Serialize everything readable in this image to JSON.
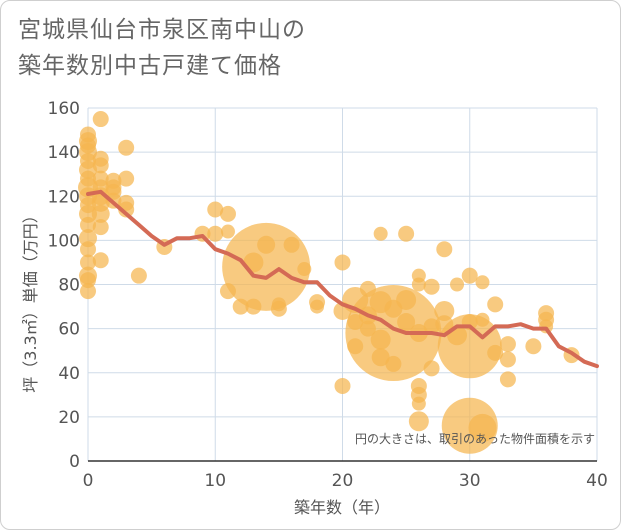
{
  "chart_data": {
    "type": "scatter",
    "title_lines": [
      "宮城県仙台市泉区南中山の",
      "築年数別中古戸建て価格"
    ],
    "xlabel": "築年数（年）",
    "ylabel": "坪（3.3㎡）単価（万円）",
    "xlim": [
      0,
      40
    ],
    "ylim": [
      0,
      160
    ],
    "xticks": [
      0,
      10,
      20,
      30,
      40
    ],
    "yticks": [
      0,
      20,
      40,
      60,
      80,
      100,
      120,
      140,
      160
    ],
    "grid": true,
    "annotation": "円の大きさは、取引のあった物件面積を示す",
    "colors": {
      "bubble": "#f5b54f",
      "line": "#d46a55",
      "grid": "#cfdbe8"
    },
    "bubbles": [
      {
        "x": 0,
        "y": 148,
        "s": 8
      },
      {
        "x": 0,
        "y": 145,
        "s": 9
      },
      {
        "x": 0,
        "y": 143,
        "s": 8
      },
      {
        "x": 0,
        "y": 140,
        "s": 9
      },
      {
        "x": 0,
        "y": 136,
        "s": 8
      },
      {
        "x": 0,
        "y": 132,
        "s": 9
      },
      {
        "x": 0,
        "y": 128,
        "s": 8
      },
      {
        "x": 0,
        "y": 124,
        "s": 10
      },
      {
        "x": 0,
        "y": 120,
        "s": 9
      },
      {
        "x": 0,
        "y": 116,
        "s": 8
      },
      {
        "x": 0,
        "y": 112,
        "s": 9
      },
      {
        "x": 0,
        "y": 107,
        "s": 8
      },
      {
        "x": 0,
        "y": 101,
        "s": 9
      },
      {
        "x": 0,
        "y": 96,
        "s": 8
      },
      {
        "x": 0,
        "y": 90,
        "s": 8
      },
      {
        "x": 0,
        "y": 84,
        "s": 9
      },
      {
        "x": 0,
        "y": 82,
        "s": 8
      },
      {
        "x": 0,
        "y": 77,
        "s": 8
      },
      {
        "x": 1,
        "y": 155,
        "s": 8
      },
      {
        "x": 1,
        "y": 137,
        "s": 8
      },
      {
        "x": 1,
        "y": 134,
        "s": 8
      },
      {
        "x": 1,
        "y": 128,
        "s": 8
      },
      {
        "x": 1,
        "y": 124,
        "s": 8
      },
      {
        "x": 1,
        "y": 120,
        "s": 9
      },
      {
        "x": 1,
        "y": 117,
        "s": 9
      },
      {
        "x": 1,
        "y": 112,
        "s": 9
      },
      {
        "x": 1,
        "y": 106,
        "s": 8
      },
      {
        "x": 1,
        "y": 91,
        "s": 8
      },
      {
        "x": 2,
        "y": 127,
        "s": 8
      },
      {
        "x": 2,
        "y": 124,
        "s": 8
      },
      {
        "x": 2,
        "y": 122,
        "s": 8
      },
      {
        "x": 2,
        "y": 118,
        "s": 8
      },
      {
        "x": 3,
        "y": 142,
        "s": 8
      },
      {
        "x": 3,
        "y": 128,
        "s": 8
      },
      {
        "x": 3,
        "y": 117,
        "s": 8
      },
      {
        "x": 3,
        "y": 114,
        "s": 8
      },
      {
        "x": 4,
        "y": 84,
        "s": 8
      },
      {
        "x": 6,
        "y": 97,
        "s": 8
      },
      {
        "x": 9,
        "y": 103,
        "s": 8
      },
      {
        "x": 10,
        "y": 114,
        "s": 8
      },
      {
        "x": 10,
        "y": 103,
        "s": 8
      },
      {
        "x": 11,
        "y": 112,
        "s": 8
      },
      {
        "x": 11,
        "y": 104,
        "s": 7
      },
      {
        "x": 11,
        "y": 77,
        "s": 8
      },
      {
        "x": 12,
        "y": 70,
        "s": 8
      },
      {
        "x": 13,
        "y": 70,
        "s": 8
      },
      {
        "x": 13,
        "y": 90,
        "s": 10
      },
      {
        "x": 14,
        "y": 88,
        "s": 44
      },
      {
        "x": 14,
        "y": 98,
        "s": 9
      },
      {
        "x": 15,
        "y": 69,
        "s": 8
      },
      {
        "x": 15,
        "y": 71,
        "s": 7
      },
      {
        "x": 16,
        "y": 98,
        "s": 8
      },
      {
        "x": 17,
        "y": 87,
        "s": 7
      },
      {
        "x": 18,
        "y": 72,
        "s": 8
      },
      {
        "x": 18,
        "y": 70,
        "s": 7
      },
      {
        "x": 20,
        "y": 90,
        "s": 8
      },
      {
        "x": 20,
        "y": 68,
        "s": 9
      },
      {
        "x": 20,
        "y": 34,
        "s": 8
      },
      {
        "x": 21,
        "y": 73,
        "s": 13
      },
      {
        "x": 21,
        "y": 63,
        "s": 8
      },
      {
        "x": 21,
        "y": 52,
        "s": 8
      },
      {
        "x": 22,
        "y": 78,
        "s": 8
      },
      {
        "x": 22,
        "y": 66,
        "s": 9
      },
      {
        "x": 22,
        "y": 60,
        "s": 8
      },
      {
        "x": 23,
        "y": 103,
        "s": 7
      },
      {
        "x": 23,
        "y": 72,
        "s": 11
      },
      {
        "x": 23,
        "y": 55,
        "s": 10
      },
      {
        "x": 23,
        "y": 47,
        "s": 9
      },
      {
        "x": 24,
        "y": 58,
        "s": 48
      },
      {
        "x": 24,
        "y": 69,
        "s": 9
      },
      {
        "x": 24,
        "y": 44,
        "s": 8
      },
      {
        "x": 25,
        "y": 103,
        "s": 8
      },
      {
        "x": 25,
        "y": 73,
        "s": 10
      },
      {
        "x": 25,
        "y": 63,
        "s": 9
      },
      {
        "x": 26,
        "y": 84,
        "s": 7
      },
      {
        "x": 26,
        "y": 80,
        "s": 7
      },
      {
        "x": 26,
        "y": 58,
        "s": 9
      },
      {
        "x": 26,
        "y": 34,
        "s": 8
      },
      {
        "x": 26,
        "y": 30,
        "s": 8
      },
      {
        "x": 26,
        "y": 26,
        "s": 7
      },
      {
        "x": 26,
        "y": 18,
        "s": 10
      },
      {
        "x": 27,
        "y": 79,
        "s": 8
      },
      {
        "x": 27,
        "y": 61,
        "s": 8
      },
      {
        "x": 27,
        "y": 42,
        "s": 8
      },
      {
        "x": 28,
        "y": 96,
        "s": 8
      },
      {
        "x": 28,
        "y": 68,
        "s": 10
      },
      {
        "x": 28,
        "y": 62,
        "s": 9
      },
      {
        "x": 29,
        "y": 80,
        "s": 7
      },
      {
        "x": 29,
        "y": 57,
        "s": 10
      },
      {
        "x": 30,
        "y": 84,
        "s": 8
      },
      {
        "x": 30,
        "y": 63,
        "s": 8
      },
      {
        "x": 30,
        "y": 52,
        "s": 32
      },
      {
        "x": 30,
        "y": 16,
        "s": 28
      },
      {
        "x": 31,
        "y": 81,
        "s": 7
      },
      {
        "x": 31,
        "y": 64,
        "s": 7
      },
      {
        "x": 31,
        "y": 15,
        "s": 14
      },
      {
        "x": 32,
        "y": 71,
        "s": 8
      },
      {
        "x": 32,
        "y": 49,
        "s": 8
      },
      {
        "x": 33,
        "y": 53,
        "s": 8
      },
      {
        "x": 33,
        "y": 46,
        "s": 8
      },
      {
        "x": 33,
        "y": 37,
        "s": 8
      },
      {
        "x": 35,
        "y": 52,
        "s": 8
      },
      {
        "x": 36,
        "y": 67,
        "s": 8
      },
      {
        "x": 36,
        "y": 64,
        "s": 8
      },
      {
        "x": 36,
        "y": 61,
        "s": 7
      },
      {
        "x": 38,
        "y": 48,
        "s": 8
      }
    ],
    "line": {
      "x": [
        0,
        1,
        2,
        3,
        4,
        5,
        6,
        7,
        8,
        9,
        10,
        11,
        12,
        13,
        14,
        15,
        16,
        17,
        18,
        19,
        20,
        21,
        22,
        23,
        24,
        25,
        26,
        27,
        28,
        29,
        30,
        31,
        32,
        33,
        34,
        35,
        36,
        37,
        38,
        39,
        40
      ],
      "y": [
        121,
        122,
        117,
        112,
        107,
        102,
        98,
        101,
        101,
        102,
        96,
        94,
        91,
        84,
        83,
        87,
        83,
        81,
        81,
        75,
        71,
        69,
        66,
        64,
        60,
        58,
        58,
        58,
        57,
        61,
        61,
        56,
        61,
        61,
        62,
        60,
        60,
        52,
        49,
        45,
        43
      ]
    }
  }
}
